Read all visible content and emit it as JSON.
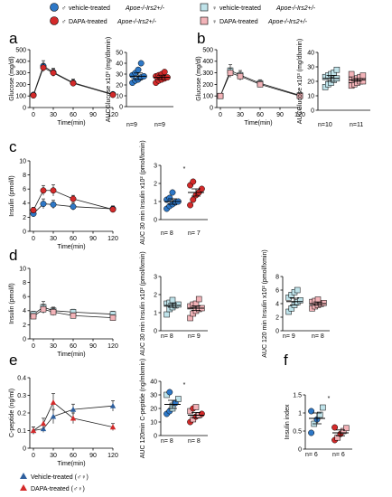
{
  "legend": [
    {
      "symbol": "♂",
      "text": "vehicle-treated",
      "genotype": "Apoe-/-Irs2+/-",
      "color": "#2e78c7",
      "shape": "circle"
    },
    {
      "symbol": "♂",
      "text": "DAPA-treated",
      "genotype": "Apoe-/-Irs2+/-",
      "color": "#d42a2a",
      "shape": "circle"
    },
    {
      "symbol": "♀",
      "text": "vehicle-treated",
      "genotype": "Apoe-/-Irs2+/-",
      "color": "#bfe3ea",
      "shape": "square"
    },
    {
      "symbol": "♀",
      "text": "DAPA-treated",
      "genotype": "Apoe-/-Irs2+/-",
      "color": "#f2b3b8",
      "shape": "square"
    }
  ],
  "panel_labels": [
    "a",
    "b",
    "c",
    "d",
    "e",
    "f"
  ],
  "group_labels": {
    "a": [
      "n=9",
      "n=9"
    ],
    "b": [
      "n=10",
      "n=11"
    ],
    "c": [
      "n= 8",
      "n= 7"
    ],
    "d1": [
      "n= 8",
      "n= 9"
    ],
    "d2": [
      "n= 9",
      "n= 8"
    ],
    "e": [
      "n= 8",
      "n= 8"
    ],
    "f": [
      "n= 6",
      "n= 6"
    ]
  },
  "bottom_legend": [
    {
      "text": "Vehicle-treated (♂♀)",
      "color": "#2e5f9e",
      "shape": "triangle"
    },
    {
      "text": "DAPA-treated (♂♀)",
      "color": "#d42a2a",
      "shape": "triangle"
    }
  ],
  "chart_data": [
    {
      "id": "a_line",
      "type": "line",
      "ylabel": "Glucose (mg/dl)",
      "xlabel": "Time(min)",
      "x": [
        0,
        15,
        30,
        60,
        120
      ],
      "xticks": [
        0,
        30,
        60,
        90,
        120
      ],
      "ylim": [
        0,
        500
      ],
      "yticks": [
        0,
        100,
        200,
        300,
        400,
        500
      ],
      "series": [
        {
          "values": [
            110,
            360,
            305,
            215,
            115
          ],
          "err": [
            15,
            45,
            35,
            30,
            10
          ],
          "color": "#2e78c7",
          "shape": "circle"
        },
        {
          "values": [
            105,
            345,
            300,
            210,
            110
          ],
          "err": [
            12,
            35,
            30,
            25,
            10
          ],
          "color": "#d42a2a",
          "shape": "circle"
        }
      ]
    },
    {
      "id": "a_auc",
      "type": "scatter",
      "ylabel": "AUCGlucose x10³ (mg/dlxmin)",
      "ylim": [
        0,
        50
      ],
      "yticks": [
        0,
        10,
        20,
        30,
        40,
        50
      ],
      "groups": [
        {
          "mean": 28,
          "err": 3,
          "color": "#2e78c7",
          "shape": "circle",
          "points": [
            22,
            24,
            25,
            27,
            28,
            29,
            31,
            34,
            40
          ]
        },
        {
          "mean": 27,
          "err": 2,
          "color": "#d42a2a",
          "shape": "circle",
          "points": [
            22,
            24,
            25,
            26,
            27,
            28,
            29,
            30,
            32
          ]
        }
      ]
    },
    {
      "id": "b_line",
      "type": "line",
      "ylabel": "Glucose (mg/dl)",
      "xlabel": "Time(min)",
      "x": [
        0,
        15,
        30,
        60,
        120
      ],
      "xticks": [
        0,
        30,
        60,
        90,
        120
      ],
      "ylim": [
        0,
        500
      ],
      "yticks": [
        0,
        100,
        200,
        300,
        400,
        500
      ],
      "series": [
        {
          "values": [
            100,
            320,
            280,
            210,
            105
          ],
          "err": [
            10,
            50,
            40,
            30,
            10
          ],
          "color": "#bfe3ea",
          "shape": "square"
        },
        {
          "values": [
            100,
            300,
            270,
            200,
            100
          ],
          "err": [
            10,
            40,
            35,
            25,
            10
          ],
          "color": "#f2b3b8",
          "shape": "square"
        }
      ]
    },
    {
      "id": "b_auc",
      "type": "scatter",
      "ylabel": "AUCGlucose x10³ (mg/dlxmin)",
      "ylim": [
        0,
        40
      ],
      "yticks": [
        0,
        10,
        20,
        30,
        40
      ],
      "groups": [
        {
          "mean": 22,
          "err": 2,
          "color": "#bfe3ea",
          "shape": "square",
          "points": [
            16,
            18,
            19,
            21,
            22,
            23,
            24,
            25,
            26,
            28
          ]
        },
        {
          "mean": 21,
          "err": 1,
          "color": "#f2b3b8",
          "shape": "square",
          "points": [
            17,
            18,
            19,
            20,
            20,
            21,
            22,
            22,
            23,
            24,
            25
          ]
        }
      ]
    },
    {
      "id": "c_line",
      "type": "line",
      "ylabel": "Insulin (pmol/l)",
      "xlabel": "Time(min)",
      "x": [
        0,
        15,
        30,
        60,
        120
      ],
      "xticks": [
        0,
        30,
        60,
        90,
        120
      ],
      "ylim": [
        0,
        10
      ],
      "yticks": [
        0,
        2,
        4,
        6,
        8,
        10
      ],
      "series": [
        {
          "values": [
            2.5,
            3.9,
            3.8,
            3.5,
            3.2
          ],
          "err": [
            0.4,
            0.7,
            0.6,
            0.5,
            0.4
          ],
          "color": "#2e78c7",
          "shape": "circle"
        },
        {
          "values": [
            3.0,
            5.8,
            5.8,
            4.6,
            3.1
          ],
          "err": [
            0.4,
            0.7,
            0.8,
            0.5,
            0.4
          ],
          "color": "#d42a2a",
          "shape": "circle"
        }
      ]
    },
    {
      "id": "c_auc",
      "type": "scatter",
      "ylabel": "AUC 30 min Insulin x10² (pmol/lxmin)",
      "ylim": [
        0,
        3
      ],
      "yticks": [
        0,
        1,
        2,
        3
      ],
      "significance": "*",
      "groups": [
        {
          "mean": 1.0,
          "err": 0.15,
          "color": "#2e78c7",
          "shape": "circle",
          "points": [
            0.6,
            0.75,
            0.85,
            0.95,
            1.0,
            1.1,
            1.2,
            1.5
          ]
        },
        {
          "mean": 1.5,
          "err": 0.2,
          "color": "#d42a2a",
          "shape": "circle",
          "points": [
            0.8,
            1.1,
            1.35,
            1.5,
            1.7,
            1.9,
            2.1
          ]
        }
      ]
    },
    {
      "id": "d_line",
      "type": "line",
      "ylabel": "Insulin (pmol/l)",
      "xlabel": "Time(min)",
      "x": [
        0,
        15,
        30,
        60,
        120
      ],
      "xticks": [
        0,
        30,
        60,
        90,
        120
      ],
      "ylim": [
        0,
        10
      ],
      "yticks": [
        0,
        2,
        4,
        6,
        8,
        10
      ],
      "series": [
        {
          "values": [
            3.5,
            4.5,
            4.0,
            3.8,
            3.5
          ],
          "err": [
            0.4,
            0.8,
            0.5,
            0.4,
            0.4
          ],
          "color": "#bfe3ea",
          "shape": "square"
        },
        {
          "values": [
            3.2,
            4.2,
            3.8,
            3.3,
            3.0
          ],
          "err": [
            0.4,
            0.6,
            0.5,
            0.4,
            0.4
          ],
          "color": "#f2b3b8",
          "shape": "square"
        }
      ]
    },
    {
      "id": "d_auc30",
      "type": "scatter",
      "ylabel": "AUC 30 min Insulin x10² (pmol/lxmin)",
      "ylim": [
        0,
        3
      ],
      "yticks": [
        0,
        1,
        2,
        3
      ],
      "groups": [
        {
          "mean": 1.4,
          "err": 0.1,
          "color": "#bfe3ea",
          "shape": "square",
          "points": [
            0.9,
            1.2,
            1.3,
            1.4,
            1.45,
            1.5,
            1.55,
            1.7
          ]
        },
        {
          "mean": 1.25,
          "err": 0.12,
          "color": "#f2b3b8",
          "shape": "square",
          "points": [
            0.7,
            0.95,
            1.1,
            1.2,
            1.25,
            1.35,
            1.45,
            1.5,
            1.75
          ]
        }
      ]
    },
    {
      "id": "d_auc120",
      "type": "scatter",
      "ylabel": "AUC 120 min Insulin x10² (pmol/lxmin)",
      "ylim": [
        0,
        8
      ],
      "yticks": [
        0,
        2,
        4,
        6,
        8
      ],
      "groups": [
        {
          "mean": 4.3,
          "err": 0.5,
          "color": "#bfe3ea",
          "shape": "square",
          "points": [
            2.8,
            3.3,
            3.8,
            4.2,
            4.5,
            4.9,
            5.3,
            5.7,
            6.0
          ]
        },
        {
          "mean": 4.0,
          "err": 0.25,
          "color": "#f2b3b8",
          "shape": "square",
          "points": [
            3.3,
            3.6,
            3.8,
            3.95,
            4.1,
            4.25,
            4.4,
            4.6
          ]
        }
      ]
    },
    {
      "id": "e_line",
      "type": "line",
      "ylabel": "C-peptide (ng/ml)",
      "xlabel": "Time(min)",
      "x": [
        0,
        15,
        30,
        60,
        120
      ],
      "xticks": [
        0,
        30,
        60,
        90,
        120
      ],
      "ylim": [
        0,
        0.4
      ],
      "yticks": [
        0,
        0.1,
        0.2,
        0.3,
        0.4
      ],
      "series": [
        {
          "values": [
            0.1,
            0.11,
            0.18,
            0.22,
            0.24
          ],
          "err": [
            0.02,
            0.02,
            0.04,
            0.03,
            0.03
          ],
          "color": "#2e5f9e",
          "shape": "triangle"
        },
        {
          "values": [
            0.1,
            0.14,
            0.26,
            0.17,
            0.12
          ],
          "err": [
            0.02,
            0.03,
            0.05,
            0.03,
            0.02
          ],
          "color": "#d42a2a",
          "shape": "triangle"
        }
      ]
    },
    {
      "id": "e_auc",
      "type": "scatter",
      "ylabel": "AUC 120min C-peptide (ng/mlxmin)",
      "ylim": [
        0,
        40
      ],
      "yticks": [
        0,
        10,
        20,
        30,
        40
      ],
      "significance": "*",
      "groups": [
        {
          "mean": 23,
          "err": 3,
          "points": [
            {
              "v": 16,
              "c": "#2e78c7",
              "s": "circle"
            },
            {
              "v": 18,
              "c": "#2e78c7",
              "s": "circle"
            },
            {
              "v": 22,
              "c": "#bfe3ea",
              "s": "square"
            },
            {
              "v": 24,
              "c": "#2e78c7",
              "s": "circle"
            },
            {
              "v": 27,
              "c": "#bfe3ea",
              "s": "square"
            },
            {
              "v": 30,
              "c": "#bfe3ea",
              "s": "square"
            },
            {
              "v": 32,
              "c": "#2e78c7",
              "s": "circle"
            },
            {
              "v": 20,
              "c": "#bfe3ea",
              "s": "square"
            }
          ]
        },
        {
          "mean": 15,
          "err": 2,
          "points": [
            {
              "v": 10,
              "c": "#d42a2a",
              "s": "circle"
            },
            {
              "v": 12,
              "c": "#f2b3b8",
              "s": "square"
            },
            {
              "v": 14,
              "c": "#d42a2a",
              "s": "circle"
            },
            {
              "v": 15,
              "c": "#f2b3b8",
              "s": "square"
            },
            {
              "v": 16,
              "c": "#d42a2a",
              "s": "circle"
            },
            {
              "v": 18,
              "c": "#f2b3b8",
              "s": "square"
            },
            {
              "v": 20,
              "c": "#d42a2a",
              "s": "circle"
            },
            {
              "v": 21,
              "c": "#f2b3b8",
              "s": "square"
            }
          ]
        }
      ]
    },
    {
      "id": "f_auc",
      "type": "scatter",
      "ylabel": "Insulin index",
      "ylim": [
        0,
        1.5
      ],
      "yticks": [
        0,
        0.5,
        1.0,
        1.5
      ],
      "significance": "*",
      "groups": [
        {
          "mean": 0.85,
          "err": 0.15,
          "points": [
            {
              "v": 0.45,
              "c": "#2e78c7",
              "s": "circle"
            },
            {
              "v": 0.7,
              "c": "#bfe3ea",
              "s": "square"
            },
            {
              "v": 0.82,
              "c": "#2e78c7",
              "s": "circle"
            },
            {
              "v": 0.95,
              "c": "#bfe3ea",
              "s": "square"
            },
            {
              "v": 1.15,
              "c": "#bfe3ea",
              "s": "square"
            },
            {
              "v": 1.05,
              "c": "#2e78c7",
              "s": "circle"
            }
          ]
        },
        {
          "mean": 0.45,
          "err": 0.08,
          "points": [
            {
              "v": 0.25,
              "c": "#d42a2a",
              "s": "circle"
            },
            {
              "v": 0.32,
              "c": "#f2b3b8",
              "s": "square"
            },
            {
              "v": 0.42,
              "c": "#d42a2a",
              "s": "circle"
            },
            {
              "v": 0.5,
              "c": "#f2b3b8",
              "s": "square"
            },
            {
              "v": 0.58,
              "c": "#f2b3b8",
              "s": "square"
            },
            {
              "v": 0.6,
              "c": "#d42a2a",
              "s": "circle"
            }
          ]
        }
      ]
    }
  ]
}
